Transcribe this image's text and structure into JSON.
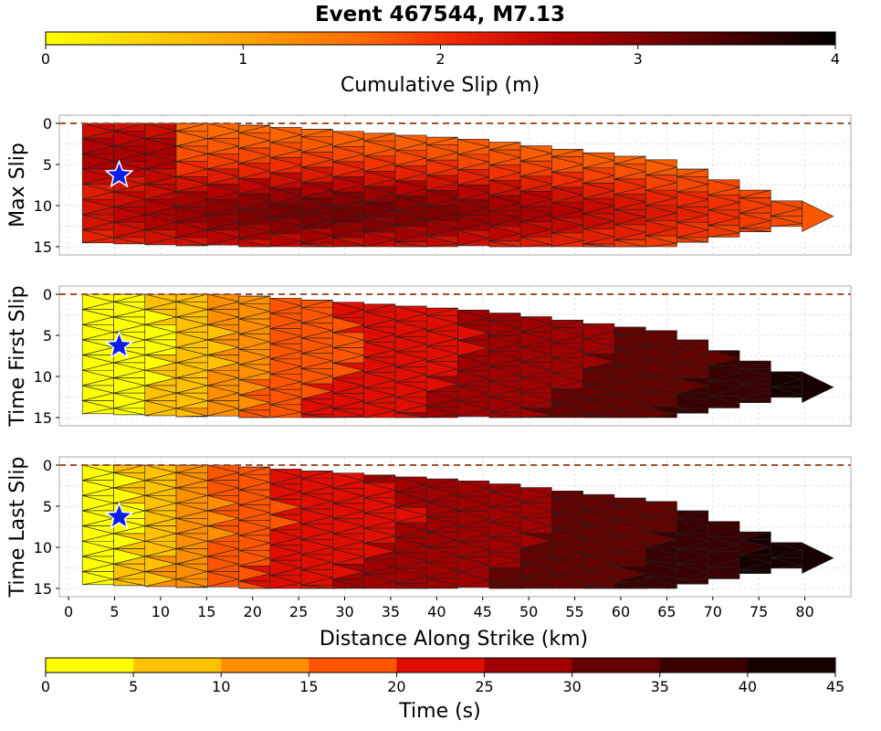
{
  "chart_data": {
    "type": "heatmap",
    "title": "Event 467544, M7.13",
    "slip_colorbar": {
      "label": "Cumulative Slip (m)",
      "range": [
        0,
        4
      ],
      "ticks": [
        0,
        1,
        2,
        3,
        4
      ],
      "colormap": "continuous yellow-orange-red-black"
    },
    "time_colorbar": {
      "label": "Time (s)",
      "range": [
        0,
        45
      ],
      "ticks": [
        0,
        5,
        10,
        15,
        20,
        25,
        30,
        35,
        40,
        45
      ],
      "band_colors": [
        "#ffff00",
        "#ffc100",
        "#ff8f00",
        "#ff5500",
        "#e00d00",
        "#a10000",
        "#640000",
        "#3a0000",
        "#180000"
      ]
    },
    "x_axis": {
      "label": "Distance Along Strike (km)",
      "range": [
        -1,
        85
      ],
      "ticks": [
        0,
        5,
        10,
        15,
        20,
        25,
        30,
        35,
        40,
        45,
        50,
        55,
        60,
        65,
        70,
        75,
        80
      ]
    },
    "y_axis": {
      "range": [
        -1,
        16
      ],
      "ticks": [
        0,
        5,
        10,
        15
      ],
      "inverted": true
    },
    "grid": true,
    "surface_line_depth_km": 0,
    "hypocenter": {
      "x_km": 5.5,
      "depth_km": 6.3,
      "marker": "blue-star"
    },
    "rupture_extent": {
      "along_strike_km": [
        1.5,
        83.5
      ],
      "depth_profile_km": [
        {
          "x": 2,
          "top": 0,
          "bottom": 14.5
        },
        {
          "x": 17,
          "top": 0,
          "bottom": 15
        },
        {
          "x": 45,
          "top": 2,
          "bottom": 15
        },
        {
          "x": 65,
          "top": 4.5,
          "bottom": 15
        },
        {
          "x": 83.5,
          "top": 11.5,
          "bottom": 11.5
        }
      ]
    },
    "panels": [
      {
        "ylabel": "Max Slip",
        "quantity": "cumulative slip",
        "units": "m",
        "slip_peak_m": 3.2,
        "slip_peak_location_km": {
          "x": 25,
          "depth": 11
        },
        "slip_shallow_m": 1.8,
        "slip_edge_m": 1.5
      },
      {
        "ylabel": "Time First Slip",
        "quantity": "rupture onset time",
        "units": "s",
        "time_at_x_km": [
          {
            "x": 0,
            "t": 0
          },
          {
            "x": 5,
            "t": 0
          },
          {
            "x": 15,
            "t": 8
          },
          {
            "x": 25,
            "t": 17
          },
          {
            "x": 45,
            "t": 25
          },
          {
            "x": 60,
            "t": 30
          },
          {
            "x": 72,
            "t": 35
          },
          {
            "x": 80,
            "t": 41
          },
          {
            "x": 84,
            "t": 45
          }
        ]
      },
      {
        "ylabel": "Time Last Slip",
        "quantity": "slip end time",
        "units": "s",
        "time_at_x_km": [
          {
            "x": 0,
            "t": 1
          },
          {
            "x": 5,
            "t": 2
          },
          {
            "x": 15,
            "t": 13
          },
          {
            "x": 25,
            "t": 21
          },
          {
            "x": 45,
            "t": 27
          },
          {
            "x": 60,
            "t": 32
          },
          {
            "x": 72,
            "t": 37
          },
          {
            "x": 78,
            "t": 41
          },
          {
            "x": 84,
            "t": 45
          }
        ]
      }
    ]
  }
}
